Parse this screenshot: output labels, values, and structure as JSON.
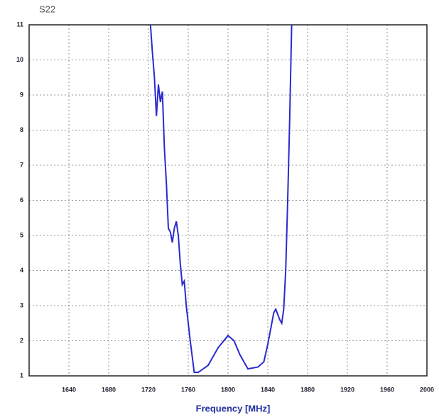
{
  "chart_data": {
    "type": "line",
    "title": "S22",
    "xlabel": "Frequency [MHz]",
    "x": [
      1722,
      1724,
      1726,
      1728,
      1730,
      1732,
      1734,
      1736,
      1738,
      1740,
      1742,
      1744,
      1746,
      1748,
      1750,
      1752,
      1754,
      1756,
      1758,
      1762,
      1766,
      1770,
      1780,
      1790,
      1800,
      1806,
      1812,
      1820,
      1830,
      1836,
      1840,
      1846,
      1848,
      1852,
      1854,
      1856,
      1858,
      1860,
      1862,
      1864
    ],
    "series": [
      {
        "name": "S22",
        "color": "#2a2ad0",
        "values": [
          11,
          10.2,
          9.5,
          8.4,
          9.3,
          8.8,
          9.1,
          7.5,
          6.5,
          5.2,
          5.1,
          4.8,
          5.2,
          5.4,
          5.0,
          4.2,
          3.6,
          3.7,
          3.0,
          2.0,
          1.1,
          1.1,
          1.3,
          1.8,
          2.15,
          2.0,
          1.6,
          1.2,
          1.25,
          1.4,
          1.9,
          2.8,
          2.9,
          2.6,
          2.5,
          2.9,
          4.0,
          6.0,
          8.3,
          11
        ]
      }
    ],
    "xlim": [
      1600,
      2000
    ],
    "xticks": [
      1640,
      1680,
      1720,
      1760,
      1800,
      1840,
      1880,
      1920,
      1960,
      2000
    ],
    "ylim": [
      1,
      11
    ],
    "yticks": [
      1,
      2,
      3,
      4,
      5,
      6,
      7,
      8,
      9,
      10,
      11
    ],
    "grid": true
  }
}
